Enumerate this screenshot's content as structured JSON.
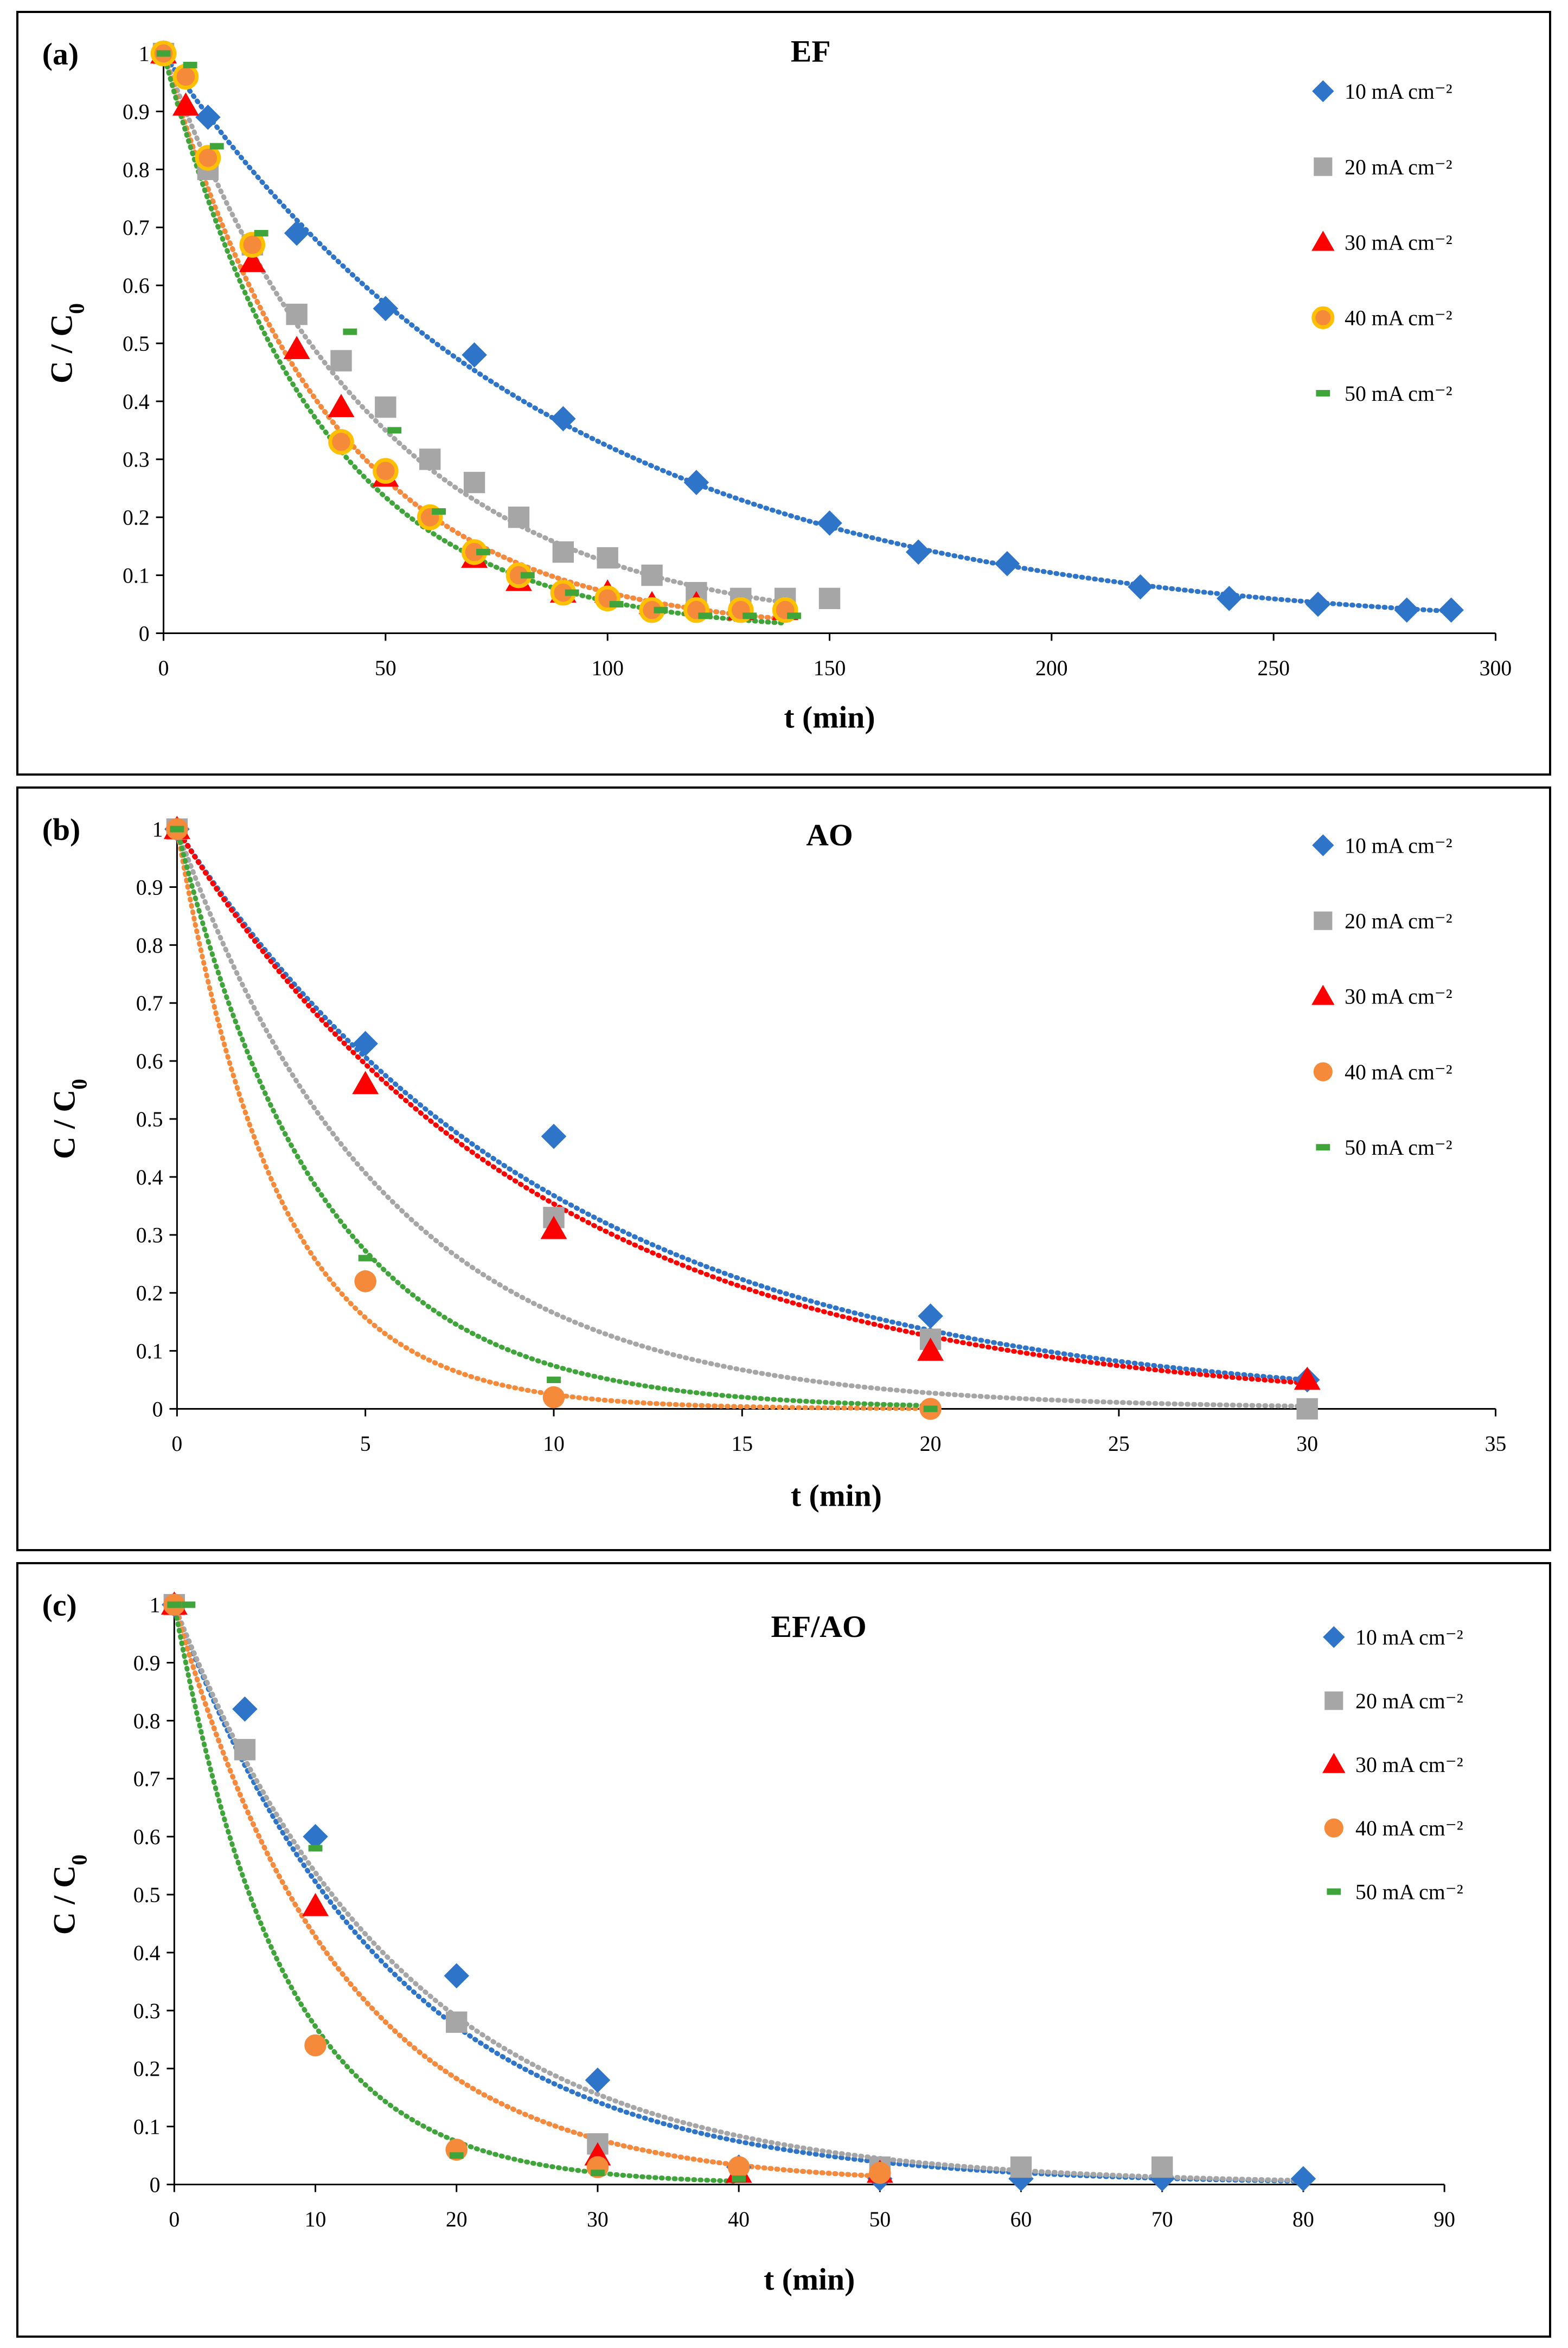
{
  "colors": {
    "10": "#2e74c8",
    "20": "#a6a6a6",
    "30": "#ff0000",
    "40": "#f58a3a",
    "50": "#3fa53a",
    "marker_outline_40_ef": "#ffc000"
  },
  "chart_data": [
    {
      "panel": "(a)",
      "type": "scatter",
      "title": "EF",
      "xlabel": "t (min)",
      "ylabel": "C / C0",
      "xlim": [
        0,
        300
      ],
      "ylim": [
        0,
        1
      ],
      "xticks": [
        0,
        50,
        100,
        150,
        200,
        250,
        300
      ],
      "yticks": [
        0,
        0.1,
        0.2,
        0.3,
        0.4,
        0.5,
        0.6,
        0.7,
        0.8,
        0.9,
        1
      ],
      "series": [
        {
          "name": "10 mA cm⁻²",
          "marker": "diamond",
          "color_key": "10",
          "fit_k": 0.0113,
          "fit_tmax": 290,
          "x": [
            0,
            10,
            30,
            50,
            70,
            90,
            120,
            150,
            170,
            190,
            220,
            240,
            260,
            280,
            290
          ],
          "y": [
            1,
            0.89,
            0.69,
            0.56,
            0.48,
            0.37,
            0.26,
            0.19,
            0.14,
            0.12,
            0.08,
            0.06,
            0.05,
            0.04,
            0.04
          ]
        },
        {
          "name": "20 mA cm⁻²",
          "marker": "square",
          "color_key": "20",
          "fit_k": 0.021,
          "fit_tmax": 140,
          "x": [
            0,
            10,
            20,
            30,
            40,
            50,
            60,
            70,
            80,
            90,
            100,
            110,
            120,
            130,
            140,
            150
          ],
          "y": [
            1,
            0.8,
            0.67,
            0.55,
            0.47,
            0.39,
            0.3,
            0.26,
            0.2,
            0.14,
            0.13,
            0.1,
            0.07,
            0.06,
            0.06,
            0.06
          ]
        },
        {
          "name": "30 mA cm⁻²",
          "marker": "triangle",
          "color_key": "30",
          "fit_k": 0.0265,
          "fit_tmax": 140,
          "x": [
            0,
            5,
            20,
            30,
            40,
            50,
            70,
            80,
            90,
            100,
            110,
            120,
            130,
            140
          ],
          "y": [
            1,
            0.91,
            0.64,
            0.49,
            0.39,
            0.27,
            0.13,
            0.09,
            0.07,
            0.07,
            0.05,
            0.05,
            0.04,
            0.04
          ]
        },
        {
          "name": "40 mA cm⁻²",
          "marker": "circle",
          "color_key": "40",
          "fit_k": 0.0265,
          "fit_tmax": 140,
          "x": [
            0,
            5,
            10,
            20,
            40,
            50,
            60,
            70,
            80,
            90,
            100,
            110,
            120,
            130,
            140
          ],
          "y": [
            1,
            0.96,
            0.82,
            0.67,
            0.33,
            0.28,
            0.2,
            0.14,
            0.1,
            0.07,
            0.06,
            0.04,
            0.04,
            0.04,
            0.04
          ]
        },
        {
          "name": "50 mA cm⁻²",
          "marker": "dash",
          "color_key": "50",
          "fit_k": 0.029,
          "fit_tmax": 140,
          "x": [
            0,
            6,
            12,
            22,
            42,
            52,
            62,
            72,
            82,
            92,
            102,
            112,
            122,
            132,
            142
          ],
          "y": [
            1,
            0.98,
            0.84,
            0.69,
            0.52,
            0.35,
            0.21,
            0.14,
            0.1,
            0.07,
            0.05,
            0.04,
            0.03,
            0.03,
            0.03
          ]
        }
      ]
    },
    {
      "panel": "(b)",
      "type": "scatter",
      "title": "AO",
      "xlabel": "t (min)",
      "ylabel": "C / C0",
      "xlim": [
        0,
        35
      ],
      "ylim": [
        0,
        1
      ],
      "xticks": [
        0,
        5,
        10,
        15,
        20,
        25,
        30,
        35
      ],
      "yticks": [
        0,
        0.1,
        0.2,
        0.3,
        0.4,
        0.5,
        0.6,
        0.7,
        0.8,
        0.9,
        1
      ],
      "series": [
        {
          "name": "10 mA cm⁻²",
          "marker": "diamond",
          "color_key": "10",
          "fit_k": 0.1,
          "fit_tmax": 30,
          "x": [
            0,
            5,
            10,
            20,
            30
          ],
          "y": [
            1,
            0.63,
            0.47,
            0.16,
            0.05
          ]
        },
        {
          "name": "20 mA cm⁻²",
          "marker": "square",
          "color_key": "20",
          "fit_k": 0.18,
          "fit_tmax": 30,
          "x": [
            0,
            10,
            20,
            30
          ],
          "y": [
            1,
            0.33,
            0.12,
            0.0
          ]
        },
        {
          "name": "30 mA cm⁻²",
          "marker": "triangle",
          "color_key": "30",
          "fit_k": 0.104,
          "fit_tmax": 30,
          "x": [
            0,
            5,
            10,
            20,
            30
          ],
          "y": [
            1,
            0.56,
            0.31,
            0.1,
            0.05
          ]
        },
        {
          "name": "40 mA cm⁻²",
          "marker": "circle",
          "color_key": "40",
          "fit_k": 0.37,
          "fit_tmax": 20,
          "x": [
            0,
            5,
            10,
            20
          ],
          "y": [
            1,
            0.22,
            0.02,
            0.0
          ]
        },
        {
          "name": "50 mA cm⁻²",
          "marker": "dash",
          "color_key": "50",
          "fit_k": 0.26,
          "fit_tmax": 20,
          "x": [
            0,
            5,
            10,
            20
          ],
          "y": [
            1,
            0.26,
            0.05,
            0.0
          ]
        }
      ]
    },
    {
      "panel": "(c)",
      "type": "scatter",
      "title": "EF/AO",
      "xlabel": "t (min)",
      "ylabel": "C / C0",
      "xlim": [
        0,
        90
      ],
      "ylim": [
        0,
        1
      ],
      "xticks": [
        0,
        10,
        20,
        30,
        40,
        50,
        60,
        70,
        80,
        90
      ],
      "yticks": [
        0,
        0.1,
        0.2,
        0.3,
        0.4,
        0.5,
        0.6,
        0.7,
        0.8,
        0.9,
        1
      ],
      "series": [
        {
          "name": "10 mA cm⁻²",
          "marker": "diamond",
          "color_key": "10",
          "fit_k": 0.065,
          "fit_tmax": 80,
          "x": [
            0,
            5,
            10,
            20,
            30,
            40,
            50,
            60,
            70,
            80
          ],
          "y": [
            1,
            0.82,
            0.6,
            0.36,
            0.18,
            0.03,
            0.01,
            0.01,
            0.01,
            0.01
          ]
        },
        {
          "name": "20 mA cm⁻²",
          "marker": "square",
          "color_key": "20",
          "fit_k": 0.062,
          "fit_tmax": 80,
          "x": [
            0,
            5,
            20,
            30,
            50,
            60,
            70
          ],
          "y": [
            1,
            0.75,
            0.28,
            0.07,
            0.03,
            0.03,
            0.03
          ]
        },
        {
          "name": "30 mA cm⁻²",
          "marker": "triangle",
          "color_key": "30",
          "fit_k": 0.085,
          "fit_tmax": 50,
          "x": [
            0,
            10,
            30,
            40,
            50
          ],
          "y": [
            1,
            0.48,
            0.05,
            0.02,
            0.02
          ]
        },
        {
          "name": "40 mA cm⁻²",
          "marker": "circle",
          "color_key": "40",
          "fit_k": 0.085,
          "fit_tmax": 50,
          "x": [
            0,
            10,
            20,
            30,
            40,
            50
          ],
          "y": [
            1,
            0.24,
            0.06,
            0.03,
            0.03,
            0.02
          ]
        },
        {
          "name": "50 mA cm⁻²",
          "marker": "dash",
          "color_key": "50",
          "fit_k": 0.13,
          "fit_tmax": 40,
          "x": [
            0,
            1,
            10,
            20,
            30,
            40
          ],
          "y": [
            1,
            1,
            0.58,
            0.05,
            0.02,
            0.01
          ]
        }
      ]
    }
  ]
}
